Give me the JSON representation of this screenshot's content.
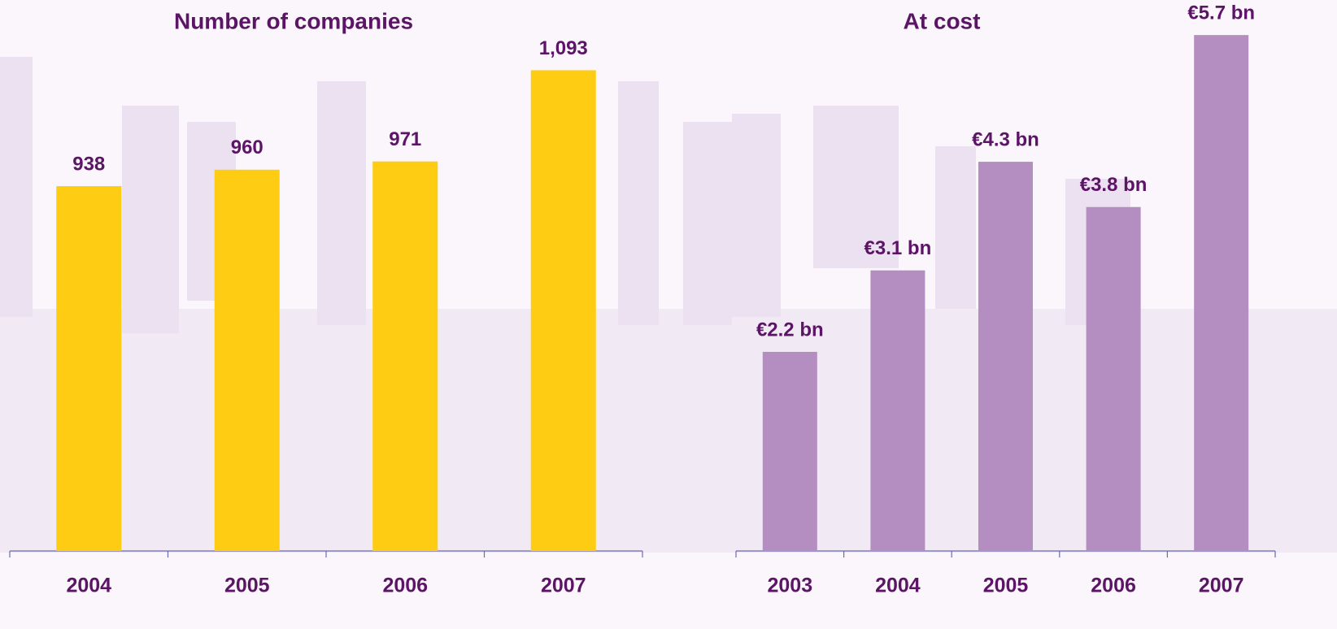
{
  "chart_data": [
    {
      "type": "bar",
      "title": "Number of companies",
      "categories": [
        "2004",
        "2005",
        "2006",
        "2007"
      ],
      "values": [
        938,
        960,
        971,
        1093
      ],
      "value_labels": [
        "938",
        "960",
        "971",
        "1,093"
      ],
      "color": "#ffcc14",
      "ylim": [
        450,
        1100
      ]
    },
    {
      "type": "bar",
      "title": "At cost",
      "categories": [
        "2003",
        "2004",
        "2005",
        "2006",
        "2007"
      ],
      "values": [
        2.2,
        3.1,
        4.3,
        3.8,
        5.7
      ],
      "value_labels": [
        "€2.2 bn",
        "€3.1 bn",
        "€4.3 bn",
        "€3.8 bn",
        "€5.7 bn"
      ],
      "color": "#b48ec0",
      "ylim": [
        0,
        5.8
      ]
    }
  ]
}
